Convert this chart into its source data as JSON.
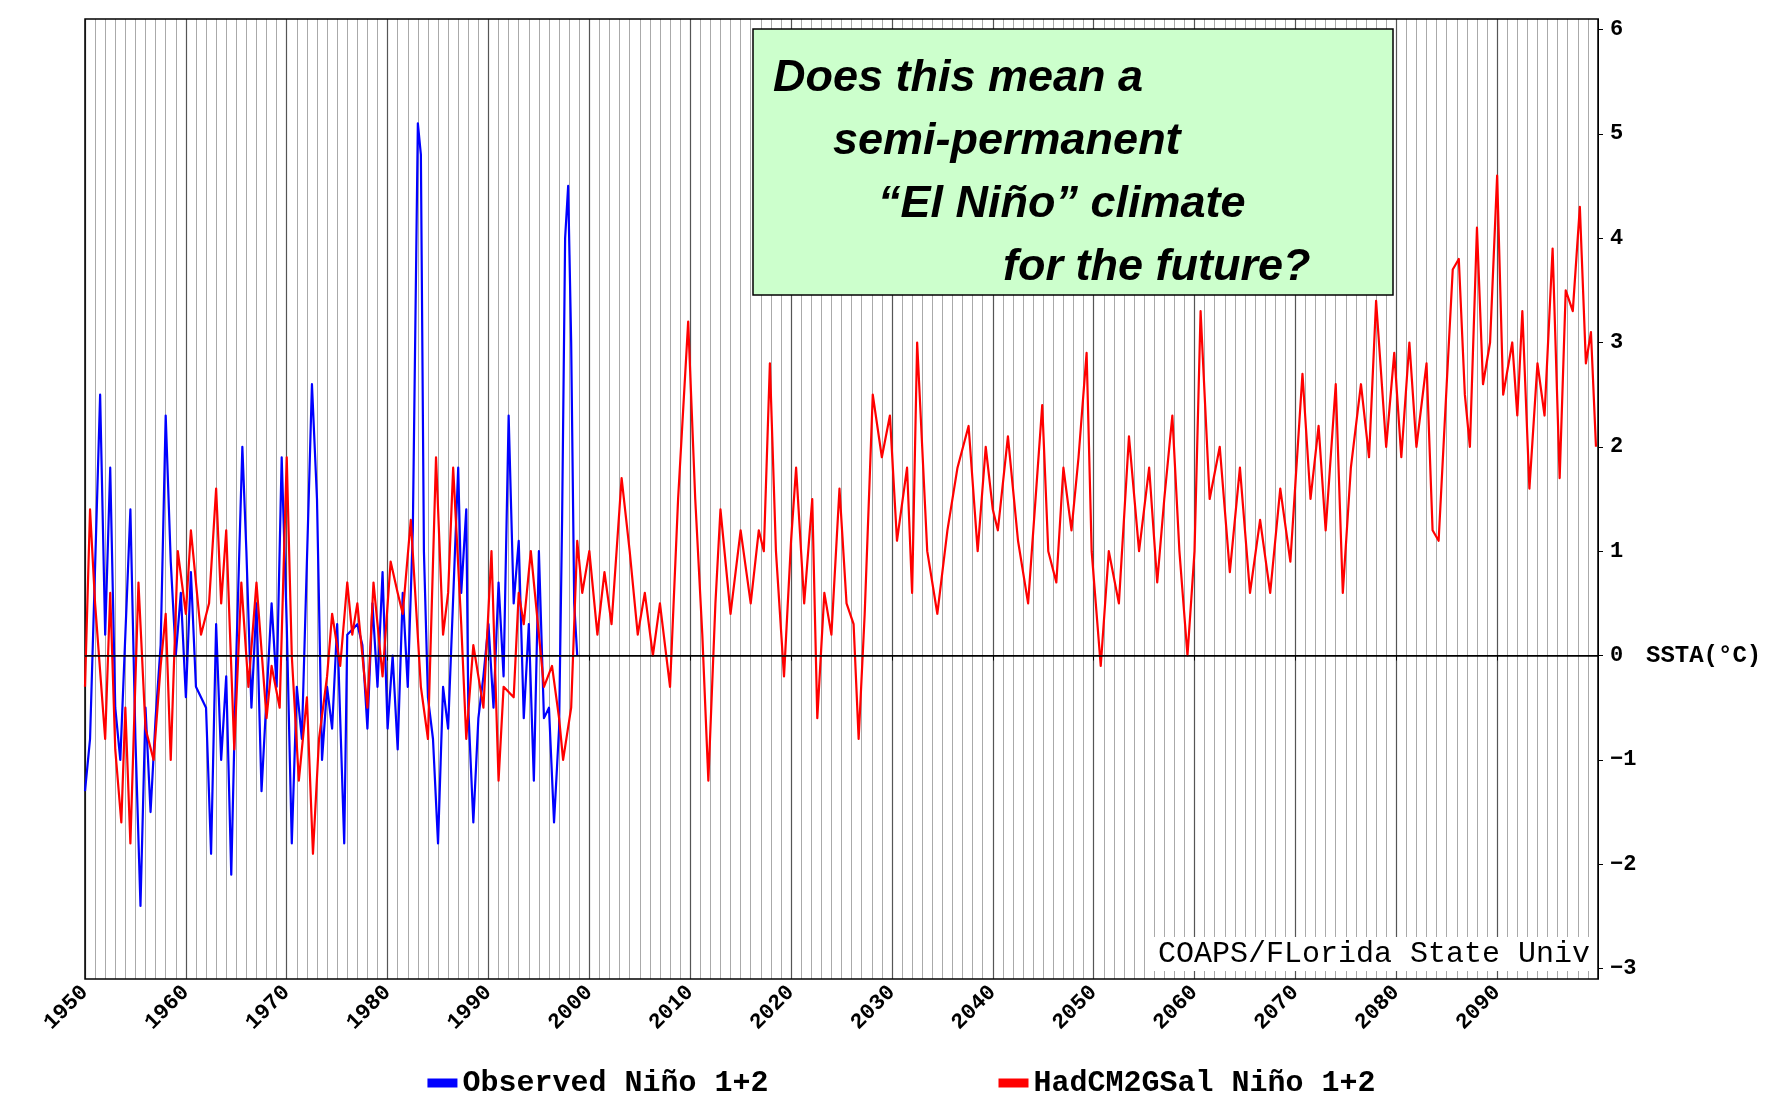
{
  "chart_data": {
    "type": "line",
    "ylabel": "SSTA(°C)",
    "annotations": [
      "Does this mean a\nsemi-permanent\n“El Niño” climate\nfor the future?",
      "COAPS/FLorida State Univ"
    ],
    "xlim": [
      1950,
      2100
    ],
    "xticks": [
      1950,
      1960,
      1970,
      1980,
      1990,
      2000,
      2010,
      2020,
      2030,
      2040,
      2050,
      2060,
      2070,
      2080,
      2090
    ],
    "ylim": [
      -3.1,
      6.1
    ],
    "yticks": [
      {
        "value": -3,
        "label": "−3"
      },
      {
        "value": -2,
        "label": "−2"
      },
      {
        "value": -1,
        "label": "−1"
      },
      0,
      1,
      2,
      3,
      4,
      5,
      6
    ],
    "grid": "x",
    "legend": "bottom",
    "line_style": "solid",
    "marker": "none",
    "ref_lines": [
      {
        "axis": "y",
        "value": 0,
        "label": null,
        "color": "#000000"
      }
    ],
    "series": [
      {
        "name": "Observed Niño 1+2",
        "color": "#0000ff",
        "x": [
          1950,
          1950.5,
          1951.5,
          1952,
          1952.5,
          1953,
          1953.5,
          1954.5,
          1955,
          1955.5,
          1956,
          1956.5,
          1957,
          1957.5,
          1958,
          1958.5,
          1959,
          1959.5,
          1960,
          1960.5,
          1961,
          1962,
          1962.5,
          1963,
          1963.5,
          1964,
          1964.5,
          1965,
          1965.6,
          1966,
          1966.5,
          1967,
          1967.5,
          1968,
          1968.5,
          1969,
          1969.5,
          1970,
          1970.5,
          1971,
          1971.5,
          1972.5,
          1973,
          1973.5,
          1974,
          1974.5,
          1975,
          1975.7,
          1976,
          1977,
          1977.5,
          1978,
          1978.5,
          1979,
          1979.5,
          1980,
          1980.5,
          1981,
          1981.5,
          1982,
          1982.5,
          1983,
          1983.3,
          1983.6,
          1984,
          1984.5,
          1985,
          1985.5,
          1986,
          1987,
          1987.3,
          1987.8,
          1988,
          1988.5,
          1989,
          1989.5,
          1990,
          1990.5,
          1991,
          1991.5,
          1992,
          1992.5,
          1993,
          1993.5,
          1994,
          1994.5,
          1995,
          1995.5,
          1996,
          1996.5,
          1997,
          1997.3,
          1997.6,
          1997.9,
          1998.2,
          1998.5,
          1998.8
        ],
        "values": [
          -1.3,
          -0.8,
          2.5,
          0.2,
          1.8,
          -0.5,
          -1.0,
          1.4,
          -0.8,
          -2.4,
          -0.5,
          -1.5,
          -0.6,
          0.1,
          2.3,
          0.9,
          0.0,
          0.6,
          -0.4,
          0.8,
          -0.3,
          -0.5,
          -1.9,
          0.3,
          -1.0,
          -0.2,
          -2.1,
          0.0,
          2.0,
          1.0,
          -0.5,
          0.5,
          -1.3,
          -0.4,
          0.5,
          -0.3,
          1.9,
          0.3,
          -1.8,
          -0.3,
          -0.8,
          2.6,
          1.5,
          -1.0,
          -0.3,
          -0.7,
          0.3,
          -1.8,
          0.2,
          0.3,
          0.1,
          -0.7,
          0.5,
          -0.3,
          0.8,
          -0.7,
          0.0,
          -0.9,
          0.6,
          -0.3,
          1.2,
          5.1,
          4.8,
          1.0,
          -0.4,
          -0.8,
          -1.8,
          -0.3,
          -0.7,
          1.8,
          0.6,
          1.4,
          -0.5,
          -1.6,
          -0.6,
          -0.2,
          0.3,
          -0.5,
          0.7,
          -0.2,
          2.3,
          0.5,
          1.1,
          -0.6,
          0.3,
          -1.2,
          1.0,
          -0.6,
          -0.5,
          -1.6,
          -0.7,
          1.3,
          4.0,
          4.5,
          3.0,
          0.5,
          0.0
        ]
      },
      {
        "name": "HadCM2GSal Niño 1+2",
        "color": "#ff0000",
        "x": [
          1950,
          1950.5,
          1951,
          1952,
          1952.5,
          1953,
          1953.6,
          1954,
          1954.5,
          1955.3,
          1956,
          1956.8,
          1957.5,
          1958,
          1958.5,
          1959.2,
          1960,
          1960.5,
          1961.5,
          1962.3,
          1963,
          1963.5,
          1964,
          1964.8,
          1965.5,
          1966.2,
          1967,
          1968,
          1968.5,
          1969.3,
          1970,
          1970.5,
          1971.2,
          1972,
          1972.6,
          1973.2,
          1974,
          1974.5,
          1975.3,
          1976,
          1976.5,
          1977,
          1978,
          1978.6,
          1979.5,
          1980.3,
          1981,
          1981.5,
          1982.3,
          1983.3,
          1984,
          1984.8,
          1985.5,
          1986,
          1986.5,
          1987.3,
          1987.8,
          1988.5,
          1989.5,
          1990.3,
          1991,
          1991.5,
          1992.5,
          1993,
          1993.5,
          1994.2,
          1995.5,
          1996.3,
          1997,
          1997.4,
          1998.2,
          1998.8,
          1999.3,
          2000,
          2000.8,
          2001.5,
          2002.2,
          2003.2,
          2004,
          2004.8,
          2005.5,
          2006.3,
          2007,
          2008,
          2008.8,
          2009.8,
          2010.5,
          2011.2,
          2011.8,
          2012.5,
          2013,
          2014,
          2015,
          2016,
          2016.8,
          2017.3,
          2017.9,
          2018.5,
          2019.3,
          2020,
          2020.5,
          2021.3,
          2022.1,
          2022.6,
          2023.3,
          2024,
          2024.8,
          2025.5,
          2026.2,
          2026.7,
          2027.3,
          2028.1,
          2029,
          2029.8,
          2030.5,
          2031.5,
          2032,
          2032.5,
          2033.5,
          2034.5,
          2035.5,
          2036.5,
          2037.6,
          2038.5,
          2039.3,
          2040,
          2040.5,
          2041.5,
          2042.5,
          2043.5,
          2044.9,
          2045.5,
          2046.3,
          2047,
          2047.8,
          2048.5,
          2049.3,
          2049.8,
          2050.7,
          2051.5,
          2052.5,
          2053.5,
          2054.5,
          2055.5,
          2056.3,
          2057,
          2057.8,
          2058.5,
          2059.3,
          2060,
          2060.6,
          2061.5,
          2062.5,
          2063.5,
          2064.5,
          2065.5,
          2066.5,
          2067.5,
          2068.5,
          2069.5,
          2070.7,
          2071.5,
          2072.3,
          2073,
          2074,
          2074.7,
          2075.5,
          2076.5,
          2077.3,
          2078,
          2079,
          2079.8,
          2080.5,
          2081.3,
          2082,
          2083,
          2083.6,
          2084.2,
          2085,
          2085.6,
          2086.2,
          2086.8,
          2087.3,
          2088,
          2088.6,
          2089.3,
          2090,
          2090.6,
          2091.5,
          2092,
          2092.5,
          2093.2,
          2094,
          2094.7,
          2095.5,
          2096.2,
          2096.8,
          2097.5,
          2098.2,
          2098.8,
          2099.3,
          2099.8
        ],
        "values": [
          -0.3,
          1.4,
          0.5,
          -0.8,
          0.6,
          -0.9,
          -1.6,
          -0.5,
          -1.8,
          0.7,
          -0.7,
          -1.0,
          -0.1,
          0.4,
          -1.0,
          1.0,
          0.4,
          1.2,
          0.2,
          0.5,
          1.6,
          0.5,
          1.2,
          -0.9,
          0.7,
          -0.3,
          0.7,
          -0.6,
          -0.1,
          -0.5,
          1.9,
          0.0,
          -1.2,
          -0.4,
          -1.9,
          -0.8,
          -0.2,
          0.4,
          -0.1,
          0.7,
          0.2,
          0.5,
          -0.5,
          0.7,
          -0.2,
          0.9,
          0.6,
          0.4,
          1.3,
          -0.3,
          -0.8,
          1.9,
          0.2,
          0.6,
          1.8,
          0.3,
          -0.8,
          0.1,
          -0.5,
          1.0,
          -1.2,
          -0.3,
          -0.4,
          0.6,
          0.3,
          1.0,
          -0.3,
          -0.1,
          -0.6,
          -1.0,
          -0.5,
          1.1,
          0.6,
          1.0,
          0.2,
          0.8,
          0.3,
          1.7,
          1.0,
          0.2,
          0.6,
          0.0,
          0.5,
          -0.3,
          1.5,
          3.2,
          1.5,
          0.2,
          -1.2,
          0.5,
          1.4,
          0.4,
          1.2,
          0.5,
          1.2,
          1.0,
          2.8,
          1.0,
          -0.2,
          1.1,
          1.8,
          0.5,
          1.5,
          -0.6,
          0.6,
          0.2,
          1.6,
          0.5,
          0.3,
          -0.8,
          0.4,
          2.5,
          1.9,
          2.3,
          1.1,
          1.8,
          0.6,
          3.0,
          1.0,
          0.4,
          1.2,
          1.8,
          2.2,
          1.0,
          2.0,
          1.4,
          1.2,
          2.1,
          1.1,
          0.5,
          2.4,
          1.0,
          0.7,
          1.8,
          1.2,
          1.9,
          2.9,
          1.0,
          -0.1,
          1.0,
          0.5,
          2.1,
          1.0,
          1.8,
          0.7,
          1.5,
          2.3,
          1.0,
          0.0,
          1.0,
          3.3,
          1.5,
          2.0,
          0.8,
          1.8,
          0.6,
          1.3,
          0.6,
          1.6,
          0.9,
          2.7,
          1.5,
          2.2,
          1.2,
          2.6,
          0.6,
          1.8,
          2.6,
          1.9,
          3.4,
          2.0,
          2.9,
          1.9,
          3.0,
          2.0,
          2.8,
          1.2,
          1.1,
          2.6,
          3.7,
          3.8,
          2.5,
          2.0,
          4.1,
          2.6,
          3.0,
          4.6,
          2.5,
          3.0,
          2.3,
          3.3,
          1.6,
          2.8,
          2.3,
          3.9,
          1.7,
          3.5,
          3.3,
          4.3,
          2.8,
          3.1,
          2.0
        ]
      }
    ]
  }
}
